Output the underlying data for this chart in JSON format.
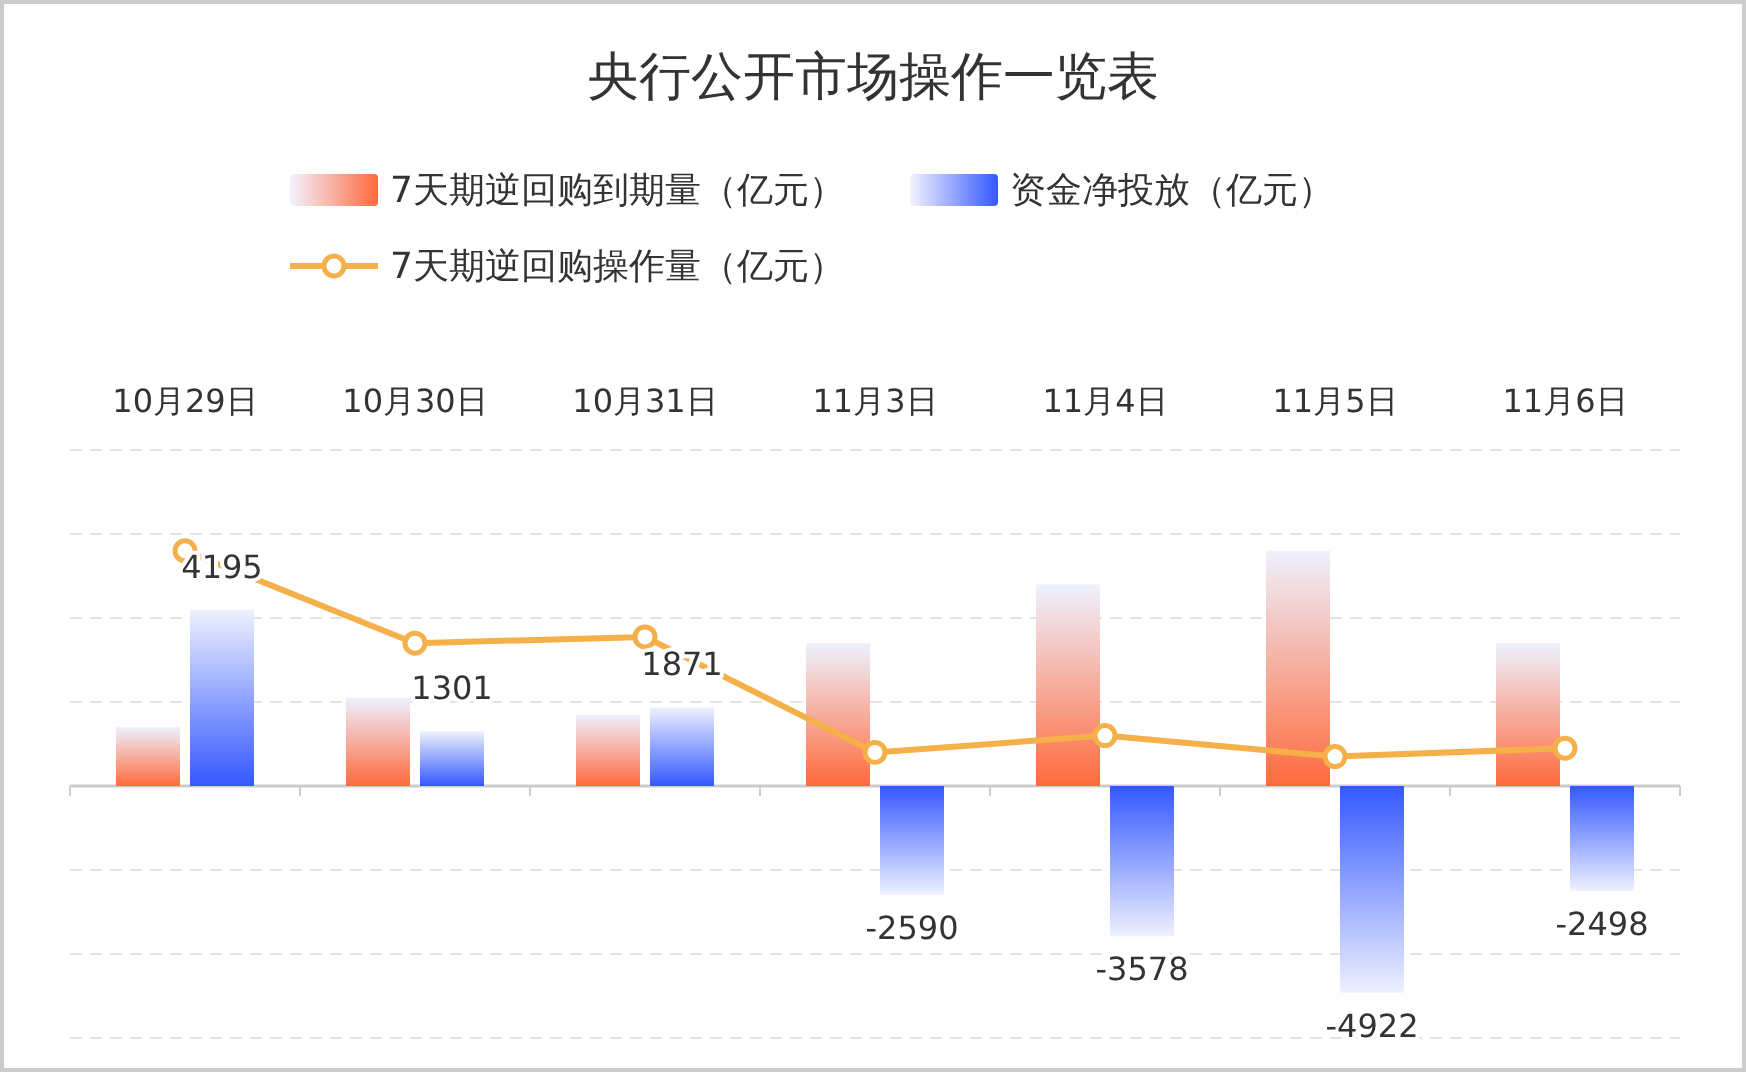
{
  "chart_data": {
    "type": "bar",
    "title": "央行公开市场操作一览表",
    "categories": [
      "10月29日",
      "10月30日",
      "10月31日",
      "11月3日",
      "11月4日",
      "11月5日",
      "11月6日"
    ],
    "series": [
      {
        "name": "7天期逆回购到期量（亿元）",
        "color": "#ff6a3d",
        "values": [
          1400,
          2100,
          1700,
          3400,
          4800,
          5600,
          3400
        ]
      },
      {
        "name": "资金净投放（亿元）",
        "color": "#3458ff",
        "values": [
          4195,
          1301,
          1871,
          -2590,
          -3578,
          -4922,
          -2498
        ],
        "value_labels": [
          "4195",
          "1301",
          "1871",
          "-2590",
          "-3578",
          "-4922",
          "-2498"
        ]
      },
      {
        "name": "7天期逆回购操作量（亿元）",
        "type": "line",
        "color": "#f5b04a",
        "values": [
          5600,
          3400,
          3550,
          800,
          1200,
          700,
          900
        ]
      }
    ],
    "ylim": [
      -6000,
      8000
    ],
    "yticks": [
      {
        "value": -6000,
        "label": null
      },
      {
        "value": -4000,
        "label": null
      },
      {
        "value": -2000,
        "label": null
      },
      {
        "value": 0,
        "label": null
      },
      {
        "value": 2000,
        "label": null
      },
      {
        "value": 4000,
        "label": null
      },
      {
        "value": 6000,
        "label": null
      },
      {
        "value": 8000,
        "label": null
      }
    ],
    "grid": "y",
    "legend": "top",
    "tick_labels": "x",
    "marker": "circle"
  }
}
